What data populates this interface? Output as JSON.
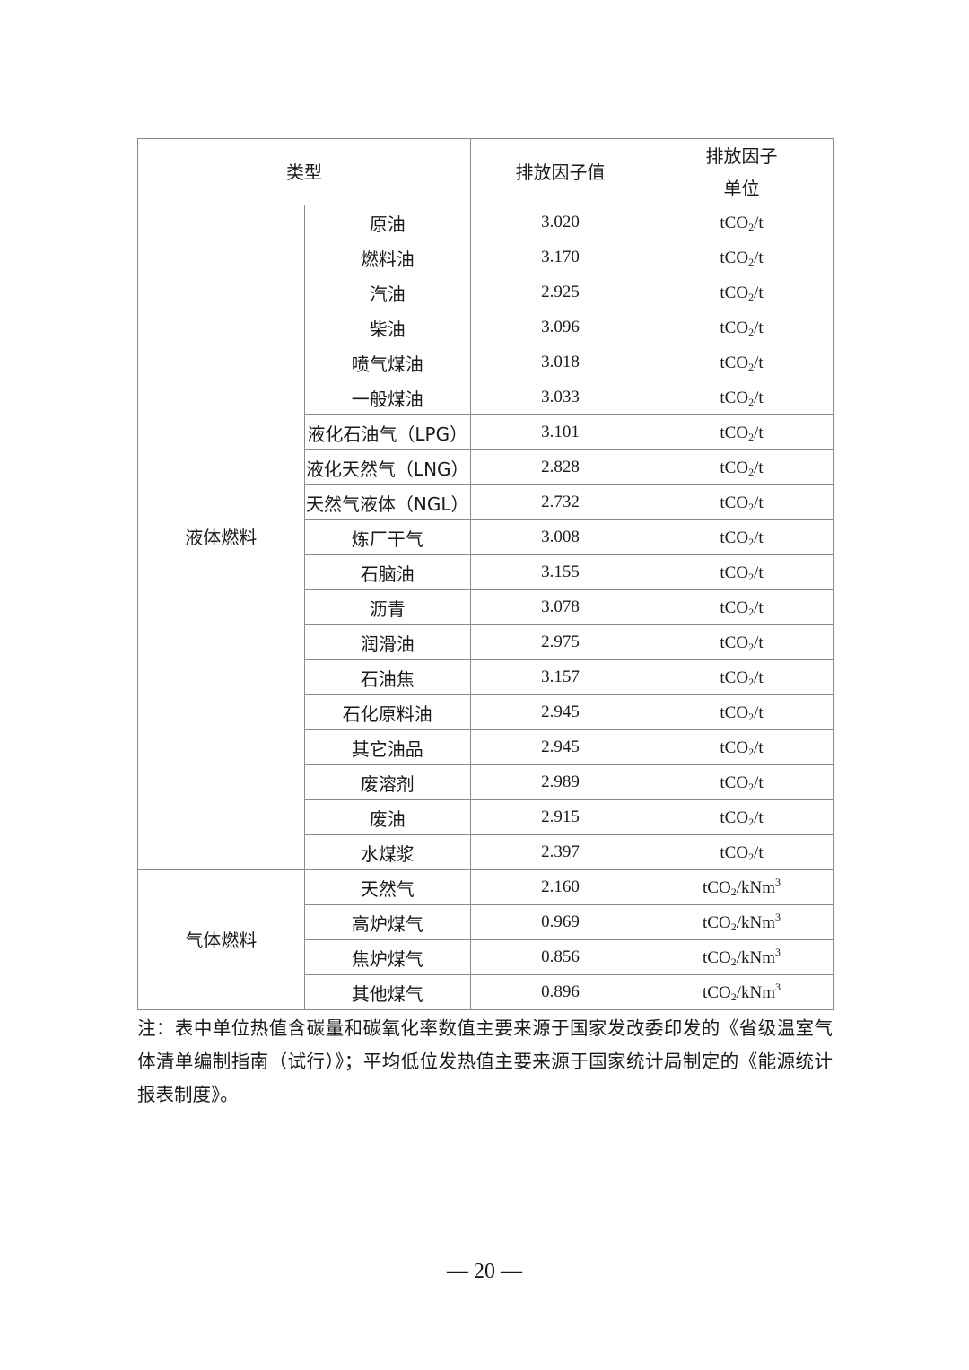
{
  "table": {
    "headers": {
      "type": "类型",
      "value": "排放因子值",
      "unit_line1": "排放因子",
      "unit_line2": "单位"
    },
    "groups": [
      {
        "category": "液体燃料",
        "rows": [
          {
            "name": "原油",
            "value": "3.020",
            "unit": {
              "pre": "tCO",
              "sub": "2",
              "post": "/t",
              "sup": ""
            }
          },
          {
            "name": "燃料油",
            "value": "3.170",
            "unit": {
              "pre": "tCO",
              "sub": "2",
              "post": "/t",
              "sup": ""
            }
          },
          {
            "name": "汽油",
            "value": "2.925",
            "unit": {
              "pre": "tCO",
              "sub": "2",
              "post": "/t",
              "sup": ""
            }
          },
          {
            "name": "柴油",
            "value": "3.096",
            "unit": {
              "pre": "tCO",
              "sub": "2",
              "post": "/t",
              "sup": ""
            }
          },
          {
            "name": "喷气煤油",
            "value": "3.018",
            "unit": {
              "pre": "tCO",
              "sub": "2",
              "post": "/t",
              "sup": ""
            }
          },
          {
            "name": "一般煤油",
            "value": "3.033",
            "unit": {
              "pre": "tCO",
              "sub": "2",
              "post": "/t",
              "sup": ""
            }
          },
          {
            "name": "液化石油气（LPG）",
            "value": "3.101",
            "unit": {
              "pre": "tCO",
              "sub": "2",
              "post": "/t",
              "sup": ""
            }
          },
          {
            "name": "液化天然气（LNG）",
            "value": "2.828",
            "unit": {
              "pre": "tCO",
              "sub": "2",
              "post": "/t",
              "sup": ""
            }
          },
          {
            "name": "天然气液体（NGL）",
            "value": "2.732",
            "unit": {
              "pre": "tCO",
              "sub": "2",
              "post": "/t",
              "sup": ""
            }
          },
          {
            "name": "炼厂干气",
            "value": "3.008",
            "unit": {
              "pre": "tCO",
              "sub": "2",
              "post": "/t",
              "sup": ""
            }
          },
          {
            "name": "石脑油",
            "value": "3.155",
            "unit": {
              "pre": "tCO",
              "sub": "2",
              "post": "/t",
              "sup": ""
            }
          },
          {
            "name": "沥青",
            "value": "3.078",
            "unit": {
              "pre": "tCO",
              "sub": "2",
              "post": "/t",
              "sup": ""
            }
          },
          {
            "name": "润滑油",
            "value": "2.975",
            "unit": {
              "pre": "tCO",
              "sub": "2",
              "post": "/t",
              "sup": ""
            }
          },
          {
            "name": "石油焦",
            "value": "3.157",
            "unit": {
              "pre": "tCO",
              "sub": "2",
              "post": "/t",
              "sup": ""
            }
          },
          {
            "name": "石化原料油",
            "value": "2.945",
            "unit": {
              "pre": "tCO",
              "sub": "2",
              "post": "/t",
              "sup": ""
            }
          },
          {
            "name": "其它油品",
            "value": "2.945",
            "unit": {
              "pre": "tCO",
              "sub": "2",
              "post": "/t",
              "sup": ""
            }
          },
          {
            "name": "废溶剂",
            "value": "2.989",
            "unit": {
              "pre": "tCO",
              "sub": "2",
              "post": "/t",
              "sup": ""
            }
          },
          {
            "name": "废油",
            "value": "2.915",
            "unit": {
              "pre": "tCO",
              "sub": "2",
              "post": "/t",
              "sup": ""
            }
          },
          {
            "name": "水煤浆",
            "value": "2.397",
            "unit": {
              "pre": "tCO",
              "sub": "2",
              "post": "/t",
              "sup": ""
            }
          }
        ]
      },
      {
        "category": "气体燃料",
        "rows": [
          {
            "name": "天然气",
            "value": "2.160",
            "unit": {
              "pre": "tCO",
              "sub": "2",
              "post": "/kNm",
              "sup": "3"
            }
          },
          {
            "name": "高炉煤气",
            "value": "0.969",
            "unit": {
              "pre": "tCO",
              "sub": "2",
              "post": "/kNm",
              "sup": "3"
            }
          },
          {
            "name": "焦炉煤气",
            "value": "0.856",
            "unit": {
              "pre": "tCO",
              "sub": "2",
              "post": "/kNm",
              "sup": "3"
            }
          },
          {
            "name": "其他煤气",
            "value": "0.896",
            "unit": {
              "pre": "tCO",
              "sub": "2",
              "post": "/kNm",
              "sup": "3"
            }
          }
        ]
      }
    ]
  },
  "note": "注：表中单位热值含碳量和碳氧化率数值主要来源于国家发改委印发的《省级温室气体清单编制指南（试行）》；平均低位发热值主要来源于国家统计局制定的《能源统计报表制度》。",
  "page_number": "— 20 —"
}
